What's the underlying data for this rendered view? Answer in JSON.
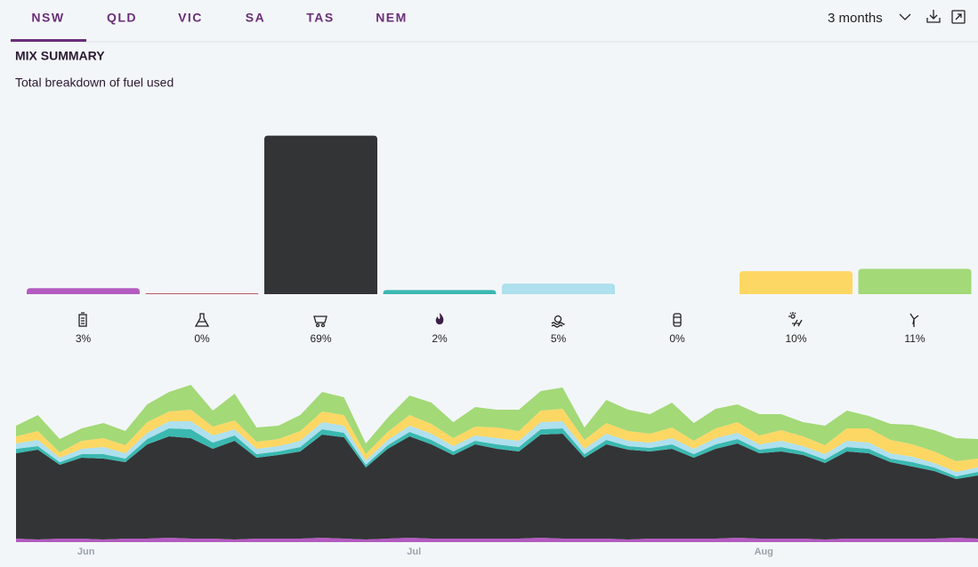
{
  "tabs": [
    "NSW",
    "QLD",
    "VIC",
    "SA",
    "TAS",
    "NEM"
  ],
  "selected_tab": 0,
  "period": "3 months",
  "title": "MIX SUMMARY",
  "subtitle": "Total breakdown of fuel used",
  "chart_data": [
    {
      "type": "bar",
      "values": [
        2.6,
        0.3,
        69,
        1.8,
        4.6,
        0,
        10,
        11
      ],
      "value_labels": [
        "3%",
        "0%",
        "69%",
        "2%",
        "5%",
        "0%",
        "10%",
        "11%"
      ],
      "colors": [
        "#b35bc0",
        "#a8253f",
        "#333436",
        "#3bb8b0",
        "#aee0ee",
        "#8a8a8a",
        "#fdd764",
        "#a3d977"
      ],
      "ylim": [
        0,
        70
      ]
    },
    {
      "type": "area",
      "stacked": true,
      "categories": [
        null,
        null,
        null,
        "Jun",
        null,
        null,
        null,
        null,
        null,
        null,
        null,
        null,
        null,
        null,
        null,
        null,
        null,
        null,
        "Jul",
        null,
        null,
        null,
        null,
        null,
        null,
        null,
        null,
        null,
        null,
        null,
        null,
        null,
        null,
        null,
        "Aug",
        null,
        null,
        null,
        null,
        null,
        null,
        null,
        null,
        null,
        null
      ],
      "ylim": [
        0,
        200
      ],
      "series": [
        {
          "color": "#b35bc0",
          "values": [
            4,
            3,
            4,
            4,
            3,
            4,
            4,
            5,
            4,
            4,
            3,
            4,
            4,
            4,
            5,
            4,
            3,
            4,
            5,
            4,
            4,
            4,
            4,
            4,
            5,
            4,
            4,
            4,
            3,
            4,
            4,
            4,
            4,
            5,
            4,
            4,
            4,
            3,
            4,
            4,
            4,
            4,
            4,
            5,
            4
          ]
        },
        {
          "color": "#333436",
          "values": [
            96,
            101,
            83,
            91,
            91,
            86,
            106,
            114,
            113,
            101,
            111,
            91,
            94,
            98,
            116,
            114,
            81,
            101,
            114,
            106,
            94,
            106,
            101,
            98,
            116,
            118,
            91,
            106,
            101,
            98,
            101,
            91,
            101,
            106,
            96,
            98,
            94,
            86,
            98,
            96,
            86,
            81,
            76,
            66,
            71
          ]
        },
        {
          "color": "#3bb8b0",
          "values": [
            5,
            4,
            3,
            4,
            5,
            4,
            6,
            9,
            10,
            7,
            6,
            4,
            4,
            5,
            6,
            5,
            3,
            4,
            5,
            5,
            4,
            4,
            5,
            5,
            6,
            6,
            4,
            5,
            4,
            4,
            5,
            4,
            5,
            5,
            4,
            5,
            4,
            4,
            5,
            5,
            4,
            5,
            4,
            3,
            4
          ]
        },
        {
          "color": "#aee0ee",
          "values": [
            6,
            7,
            5,
            6,
            8,
            6,
            7,
            8,
            9,
            8,
            7,
            6,
            6,
            7,
            8,
            8,
            5,
            6,
            7,
            7,
            6,
            6,
            7,
            7,
            8,
            8,
            6,
            7,
            6,
            6,
            7,
            6,
            7,
            7,
            6,
            7,
            6,
            6,
            7,
            7,
            6,
            6,
            5,
            5,
            5
          ]
        },
        {
          "color": "#fdd764",
          "values": [
            8,
            10,
            6,
            9,
            10,
            9,
            12,
            11,
            13,
            10,
            10,
            8,
            8,
            11,
            12,
            12,
            7,
            9,
            12,
            11,
            9,
            10,
            12,
            11,
            13,
            14,
            10,
            12,
            11,
            10,
            12,
            9,
            11,
            12,
            10,
            12,
            11,
            10,
            14,
            16,
            15,
            14,
            13,
            12,
            10
          ]
        },
        {
          "color": "#a3d977",
          "values": [
            12,
            18,
            15,
            14,
            17,
            16,
            20,
            22,
            28,
            18,
            30,
            16,
            15,
            18,
            22,
            20,
            12,
            16,
            22,
            24,
            18,
            22,
            20,
            24,
            22,
            24,
            14,
            26,
            24,
            22,
            28,
            20,
            22,
            20,
            24,
            18,
            16,
            22,
            20,
            14,
            18,
            22,
            24,
            26,
            22
          ]
        }
      ]
    }
  ]
}
